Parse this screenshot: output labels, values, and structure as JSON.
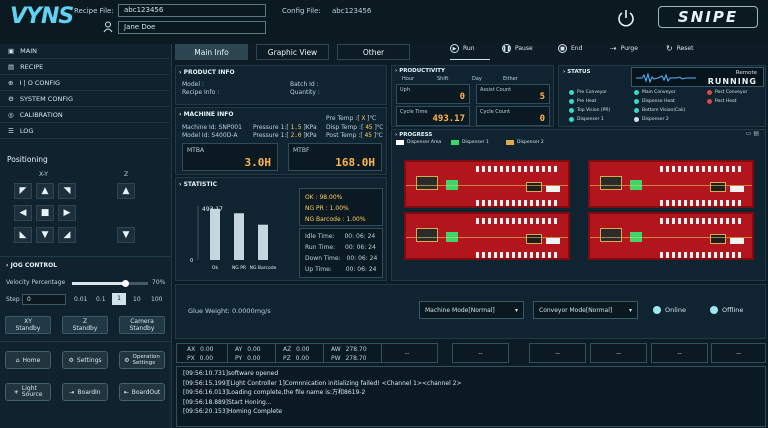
{
  "header": {
    "logo": "VYNS",
    "recipe_file_label": "Recipe File:",
    "recipe_file_value": "abc123456",
    "user_value": "Jane Doe",
    "config_file_label": "Config File:",
    "config_file_value": "abc123456",
    "brand": "SNIPE"
  },
  "sidebar": {
    "items": [
      {
        "label": "MAIN",
        "icon": "monitor-icon"
      },
      {
        "label": "RECIPE",
        "icon": "recipe-icon"
      },
      {
        "label": "I | O CONFIG",
        "icon": "io-icon"
      },
      {
        "label": "SYSTEM CONFIG",
        "icon": "gear-icon"
      },
      {
        "label": "CALIBRATION",
        "icon": "target-icon"
      },
      {
        "label": "LOG",
        "icon": "log-icon"
      }
    ]
  },
  "positioning": {
    "title": "Positioning",
    "xy_label": "X-Y",
    "z_label": "Z"
  },
  "jog": {
    "title": "JOG CONTROL",
    "velocity_label": "Velocity Percentage",
    "velocity_value": "70%",
    "velocity_fraction": 0.7,
    "step_label": "Step",
    "step_value": "0",
    "steps": [
      "0.01",
      "0.1",
      "1",
      "10",
      "100"
    ],
    "standby": [
      "XY\nStandby",
      "Z\nStandby",
      "Camera\nStandby"
    ]
  },
  "bottom_buttons": [
    {
      "label": "Home",
      "icon": "home-icon"
    },
    {
      "label": "Settings",
      "icon": "settings-icon"
    },
    {
      "label": "Operation\nSettings",
      "icon": "operation-icon"
    },
    {
      "label": "Light\nSource",
      "icon": "light-icon"
    },
    {
      "label": "BoardIn",
      "icon": "board-in-icon"
    },
    {
      "label": "BoardOut",
      "icon": "board-out-icon"
    }
  ],
  "tabs": [
    "Main Info",
    "Graphic View",
    "Other"
  ],
  "controls": [
    "Run",
    "Pause",
    "End",
    "Purge",
    "Reset"
  ],
  "product_info": {
    "title": "PRODUCT INFO",
    "model_label": "Model :",
    "recipe_info_label": "Recipe Info :",
    "batch_id_label": "Batch Id :",
    "quantity_label": "Quantity :"
  },
  "machine_info": {
    "title": "MACHINE INFO",
    "machine_id": "Machine Id: SNP001",
    "model_id": "Model Id: S400D-A",
    "pressure1": "Pressure 1:",
    "pressure1_val": "1.5",
    "pressure2": "Pressure 1:",
    "pressure2_val": "2.0",
    "unit_kpa": "KPa",
    "pre_temp": "Pre Temp :",
    "pre_temp_val": "X",
    "disp_temp": "Disp Temp :",
    "disp_temp_val": "45",
    "post_temp": "Post Temp :",
    "post_temp_val": "45",
    "unit_c": "℃",
    "mtba_label": "MTBA",
    "mtba_value": "3.0H",
    "mtbf_label": "MTBF",
    "mtbf_value": "168.0H"
  },
  "statistic": {
    "title": "STATISTIC",
    "bar_top_label": "493.17",
    "bar_zero": "0",
    "bar_labels": [
      "Ok",
      "NG PR",
      "NG Barcode"
    ],
    "ok": "OK : 98.00%",
    "ng_pr": "NG PR : 1.00%",
    "ng_barcode": "NG Barcode : 1.00%",
    "times": [
      {
        "label": "Idle Time:",
        "value": "00: 06: 24"
      },
      {
        "label": "Run Time:",
        "value": "00: 06: 24"
      },
      {
        "label": "Down Time:",
        "value": "00: 06: 24"
      },
      {
        "label": "Up Time:",
        "value": "00: 06: 24"
      }
    ]
  },
  "chart_data": {
    "type": "bar",
    "categories": [
      "Ok",
      "NG PR",
      "NG Barcode"
    ],
    "values": [
      493.17,
      450,
      340
    ],
    "ylim": [
      0,
      520
    ]
  },
  "productivity": {
    "title": "PRODUCTIVITY",
    "tabs": [
      "Hour",
      "Shift",
      "Day",
      "Either"
    ],
    "uph_label": "Uph",
    "uph_value": "0",
    "assist_label": "Assist Count",
    "assist_value": "5",
    "cycle_time_label": "Cycle Time",
    "cycle_time_value": "493.17",
    "cycle_count_label": "Cycle Count",
    "cycle_count_value": "0"
  },
  "status": {
    "title": "STATUS",
    "remote_label": "Remote",
    "running_label": "RUNNING",
    "items": [
      {
        "label": "Pre Conveyor",
        "color": "#3dd6c8"
      },
      {
        "label": "Main Conveyor",
        "color": "#3dd6c8"
      },
      {
        "label": "Post Conveyor",
        "color": "#e04848"
      },
      {
        "label": "Pre Heat",
        "color": "#3dd6c8"
      },
      {
        "label": "Dispense Heat",
        "color": "#3dd6c8"
      },
      {
        "label": "Post Heat",
        "color": "#e04848"
      },
      {
        "label": "Top Vision (PR)",
        "color": "#3dd6c8"
      },
      {
        "label": "Bottom Vision(Cali)",
        "color": "#3dd6c8"
      },
      {
        "label": "Dispenser 1",
        "color": "#3dd6c8"
      },
      {
        "label": "Dispenser 2",
        "color": "#cfe3ec"
      }
    ]
  },
  "progress": {
    "title": "PROGRESS",
    "legend": [
      {
        "label": "Dispenser Area",
        "color": "#ffffff"
      },
      {
        "label": "Dispenser 1",
        "color": "#3dd66a"
      },
      {
        "label": "Dispenser 2",
        "color": "#d9a94a"
      }
    ]
  },
  "modes": {
    "glue_label": "Glue  Weight:",
    "glue_value": "0.0000mg/s",
    "machine_mode": "Machine Mode[Normal]",
    "conveyor_mode": "Conveyor Mode[Normal]",
    "online": "Online",
    "offline": "Offline"
  },
  "axes": {
    "rows": [
      [
        {
          "k": "AX",
          "v": "0.00"
        },
        {
          "k": "AY",
          "v": "0.00"
        },
        {
          "k": "AZ",
          "v": "0.00"
        },
        {
          "k": "AW",
          "v": "278.70"
        }
      ],
      [
        {
          "k": "PX",
          "v": "0.00"
        },
        {
          "k": "PY",
          "v": "0.00"
        },
        {
          "k": "PZ",
          "v": "0.00"
        },
        {
          "k": "PW",
          "v": "278.70"
        }
      ]
    ],
    "placeholders": [
      "--",
      "--",
      "--",
      "--",
      "--",
      "--"
    ]
  },
  "log": [
    "[09:56:10.731]software opened",
    "[09:56:15,199][Light Controller 1]Comnnication initializing failed! <Channel 1><channel 2>",
    "[09:56:16.013]Loading complete,the file name is:万和8619-2",
    "[09:56:18.889]Start Honing...",
    "[09:56:20.153]Homing Complete"
  ]
}
